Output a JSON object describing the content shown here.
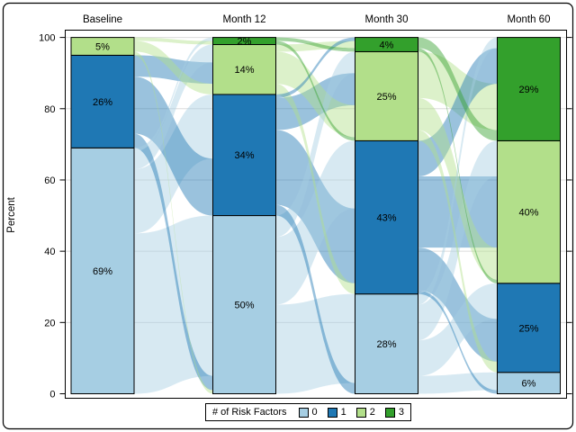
{
  "chart_data": {
    "type": "bar",
    "variant": "sankey-stacked-bar",
    "title": "",
    "xlabel": "",
    "ylabel": "Percent",
    "ylim": [
      0,
      100
    ],
    "yticks": [
      0,
      20,
      40,
      60,
      80,
      100
    ],
    "grid": true,
    "categories": [
      "Baseline",
      "Month 12",
      "Month 30",
      "Month 60"
    ],
    "label_suffix": "%",
    "series": [
      {
        "name": "0",
        "color": "#a6cee3",
        "values": [
          69,
          50,
          28,
          6
        ]
      },
      {
        "name": "1",
        "color": "#1f78b4",
        "values": [
          26,
          34,
          43,
          25
        ]
      },
      {
        "name": "2",
        "color": "#b2df8a",
        "values": [
          5,
          14,
          25,
          40
        ]
      },
      {
        "name": "3",
        "color": "#33a02c",
        "values": [
          0,
          2,
          4,
          29
        ]
      }
    ],
    "legend": {
      "title": "# of Risk Factors",
      "position": "bottom",
      "entries": [
        {
          "label": "0",
          "color": "#a6cee3"
        },
        {
          "label": "1",
          "color": "#1f78b4"
        },
        {
          "label": "2",
          "color": "#b2df8a"
        },
        {
          "label": "3",
          "color": "#33a02c"
        }
      ]
    },
    "flows_estimated_from_ribbons": [
      {
        "from": "Baseline",
        "to": "Month 12",
        "matrix": [
          [
            45,
            18,
            5,
            1
          ],
          [
            4,
            16,
            6,
            0
          ],
          [
            1,
            0,
            3,
            1
          ],
          [
            0,
            0,
            0,
            0
          ]
        ]
      },
      {
        "from": "Month 12",
        "to": "Month 30",
        "matrix": [
          [
            25,
            19,
            6,
            0
          ],
          [
            3,
            21,
            9,
            1
          ],
          [
            0,
            3,
            9,
            2
          ],
          [
            0,
            0,
            1,
            1
          ]
        ]
      },
      {
        "from": "Month 30",
        "to": "Month 60",
        "matrix": [
          [
            5,
            10,
            10,
            3
          ],
          [
            1,
            12,
            20,
            10
          ],
          [
            0,
            3,
            9,
            13
          ],
          [
            0,
            0,
            1,
            3
          ]
        ]
      }
    ],
    "flow_opacity": 0.45,
    "colors": {
      "grid": "#dcdcdc",
      "frame": "#000000",
      "bar_outline": "#000000",
      "text": "#000000"
    }
  }
}
